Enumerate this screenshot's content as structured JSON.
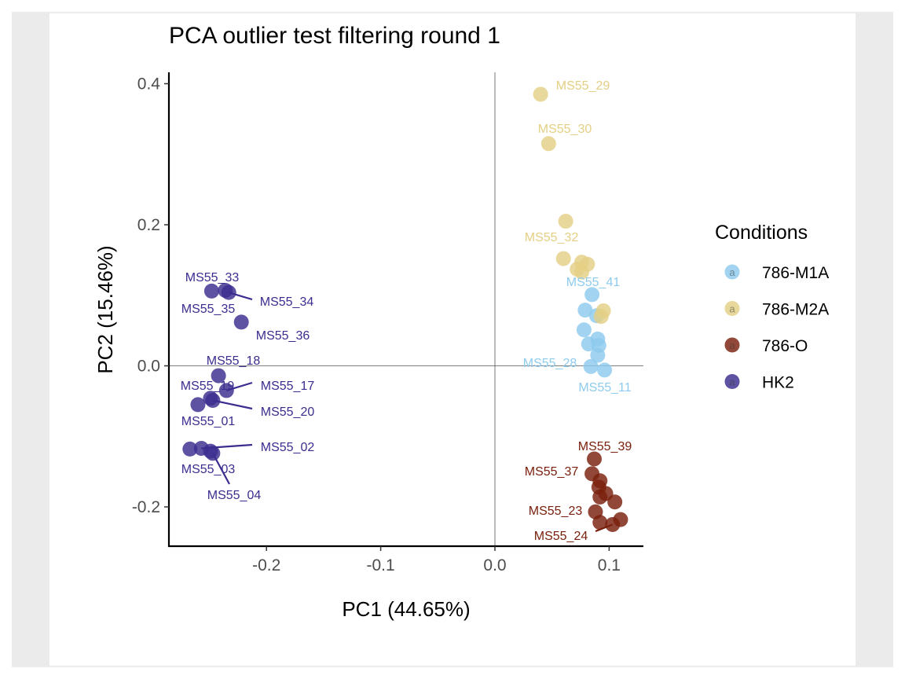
{
  "chart_data": {
    "type": "scatter",
    "title": "PCA outlier test filtering round  1",
    "xlabel": "PC1 (44.65%)",
    "ylabel": "PC2 (15.46%)",
    "xlim": [
      -0.285,
      0.128
    ],
    "ylim": [
      -0.255,
      0.415
    ],
    "x_ticks": [
      -0.2,
      -0.1,
      0.0,
      0.1
    ],
    "x_tick_labels": [
      "-0.2",
      "-0.1",
      "0.0",
      "0.1"
    ],
    "y_ticks": [
      -0.2,
      0.0,
      0.2,
      0.4
    ],
    "y_tick_labels": [
      "-0.2",
      "0.0",
      "0.2",
      "0.4"
    ],
    "reference_lines": {
      "x": 0,
      "y": 0
    },
    "grid": false,
    "legend": {
      "title": "Conditions",
      "position": "right",
      "key_glyph": "a"
    },
    "series": [
      {
        "name": "786-M1A",
        "color": "#8ecbee",
        "points": [
          {
            "x": 0.085,
            "y": 0.101,
            "label": "MS55_41"
          },
          {
            "x": 0.079,
            "y": 0.079,
            "label": ""
          },
          {
            "x": 0.089,
            "y": 0.071,
            "label": ""
          },
          {
            "x": 0.078,
            "y": 0.051,
            "label": ""
          },
          {
            "x": 0.09,
            "y": 0.038,
            "label": ""
          },
          {
            "x": 0.082,
            "y": 0.031,
            "label": ""
          },
          {
            "x": 0.091,
            "y": 0.029,
            "label": ""
          },
          {
            "x": 0.09,
            "y": 0.015,
            "label": ""
          },
          {
            "x": 0.084,
            "y": -0.001,
            "label": "MS55_28"
          },
          {
            "x": 0.096,
            "y": -0.006,
            "label": "MS55_11"
          }
        ]
      },
      {
        "name": "786-M2A",
        "color": "#e4cf85",
        "points": [
          {
            "x": 0.04,
            "y": 0.385,
            "label": "MS55_29"
          },
          {
            "x": 0.047,
            "y": 0.315,
            "label": "MS55_30"
          },
          {
            "x": 0.062,
            "y": 0.205,
            "label": "MS55_32"
          },
          {
            "x": 0.06,
            "y": 0.152,
            "label": ""
          },
          {
            "x": 0.076,
            "y": 0.147,
            "label": ""
          },
          {
            "x": 0.081,
            "y": 0.144,
            "label": ""
          },
          {
            "x": 0.072,
            "y": 0.137,
            "label": ""
          },
          {
            "x": 0.076,
            "y": 0.133,
            "label": ""
          },
          {
            "x": 0.095,
            "y": 0.078,
            "label": ""
          },
          {
            "x": 0.093,
            "y": 0.07,
            "label": ""
          }
        ]
      },
      {
        "name": "786-O",
        "color": "#7a200d",
        "points": [
          {
            "x": 0.087,
            "y": -0.132,
            "label": "MS55_39"
          },
          {
            "x": 0.085,
            "y": -0.153,
            "label": "MS55_37"
          },
          {
            "x": 0.092,
            "y": -0.163,
            "label": ""
          },
          {
            "x": 0.091,
            "y": -0.172,
            "label": ""
          },
          {
            "x": 0.097,
            "y": -0.181,
            "label": ""
          },
          {
            "x": 0.092,
            "y": -0.186,
            "label": ""
          },
          {
            "x": 0.105,
            "y": -0.193,
            "label": ""
          },
          {
            "x": 0.088,
            "y": -0.207,
            "label": "MS55_23"
          },
          {
            "x": 0.092,
            "y": -0.222,
            "label": ""
          },
          {
            "x": 0.103,
            "y": -0.225,
            "label": "MS55_24"
          },
          {
            "x": 0.11,
            "y": -0.218,
            "label": ""
          }
        ]
      },
      {
        "name": "HK2",
        "color": "#3a2d8f",
        "points": [
          {
            "x": -0.248,
            "y": 0.106,
            "label": "MS55_35"
          },
          {
            "x": -0.236,
            "y": 0.107,
            "label": "MS55_33"
          },
          {
            "x": -0.233,
            "y": 0.104,
            "label": "MS55_34"
          },
          {
            "x": -0.222,
            "y": 0.062,
            "label": "MS55_36"
          },
          {
            "x": -0.242,
            "y": -0.014,
            "label": "MS55_18"
          },
          {
            "x": -0.235,
            "y": -0.035,
            "label": "MS55_17"
          },
          {
            "x": -0.249,
            "y": -0.046,
            "label": "MS55_19"
          },
          {
            "x": -0.247,
            "y": -0.049,
            "label": "MS55_20"
          },
          {
            "x": -0.26,
            "y": -0.055,
            "label": "MS55_01"
          },
          {
            "x": -0.267,
            "y": -0.118,
            "label": ""
          },
          {
            "x": -0.257,
            "y": -0.117,
            "label": "MS55_02"
          },
          {
            "x": -0.249,
            "y": -0.121,
            "label": "MS55_03"
          },
          {
            "x": -0.247,
            "y": -0.124,
            "label": "MS55_04"
          }
        ]
      }
    ]
  }
}
